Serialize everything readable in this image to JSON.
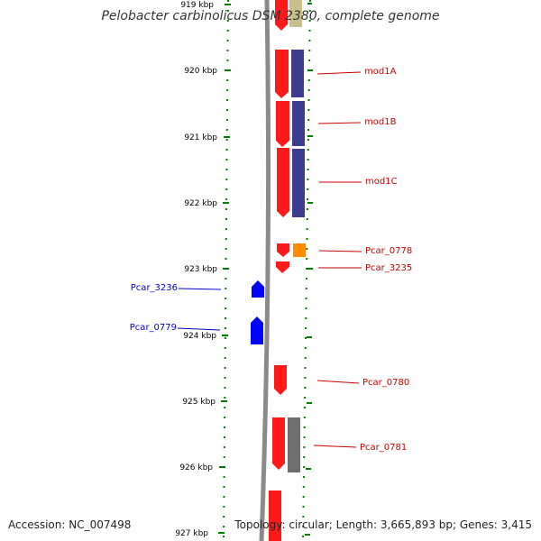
{
  "title": "Pelobacter carbinolicus DSM 2380, complete genome",
  "footer": {
    "accession": "Accession: NC_007498",
    "summary": "Topology: circular; Length: 3,665,893 bp; Genes: 3,415"
  },
  "scale": {
    "unit": "kbp",
    "ticks": [
      "919 kbp",
      "920 kbp",
      "921 kbp",
      "922 kbp",
      "923 kbp",
      "924 kbp",
      "925 kbp",
      "926 kbp",
      "927 kbp"
    ]
  },
  "colors": {
    "forward_gene": "#ff0000",
    "reverse_gene": "#0000ff",
    "tick": "#008000",
    "forward_label": "#cc0000",
    "reverse_label": "#0000cc",
    "cog_purple": "#3d3d8f",
    "cog_orange": "#ff8c00",
    "cog_gray": "#6e6e6e",
    "cog_khaki": "#c8bf8c",
    "backbone": "#8a8a8a"
  },
  "genes": [
    {
      "label": "mod1A",
      "strand": "forward"
    },
    {
      "label": "mod1B",
      "strand": "forward"
    },
    {
      "label": "mod1C",
      "strand": "forward"
    },
    {
      "label": "Pcar_0778",
      "strand": "forward"
    },
    {
      "label": "Pcar_3235",
      "strand": "forward"
    },
    {
      "label": "Pcar_3236",
      "strand": "reverse"
    },
    {
      "label": "Pcar_0779",
      "strand": "reverse"
    },
    {
      "label": "Pcar_0780",
      "strand": "forward"
    },
    {
      "label": "Pcar_0781",
      "strand": "forward"
    }
  ]
}
